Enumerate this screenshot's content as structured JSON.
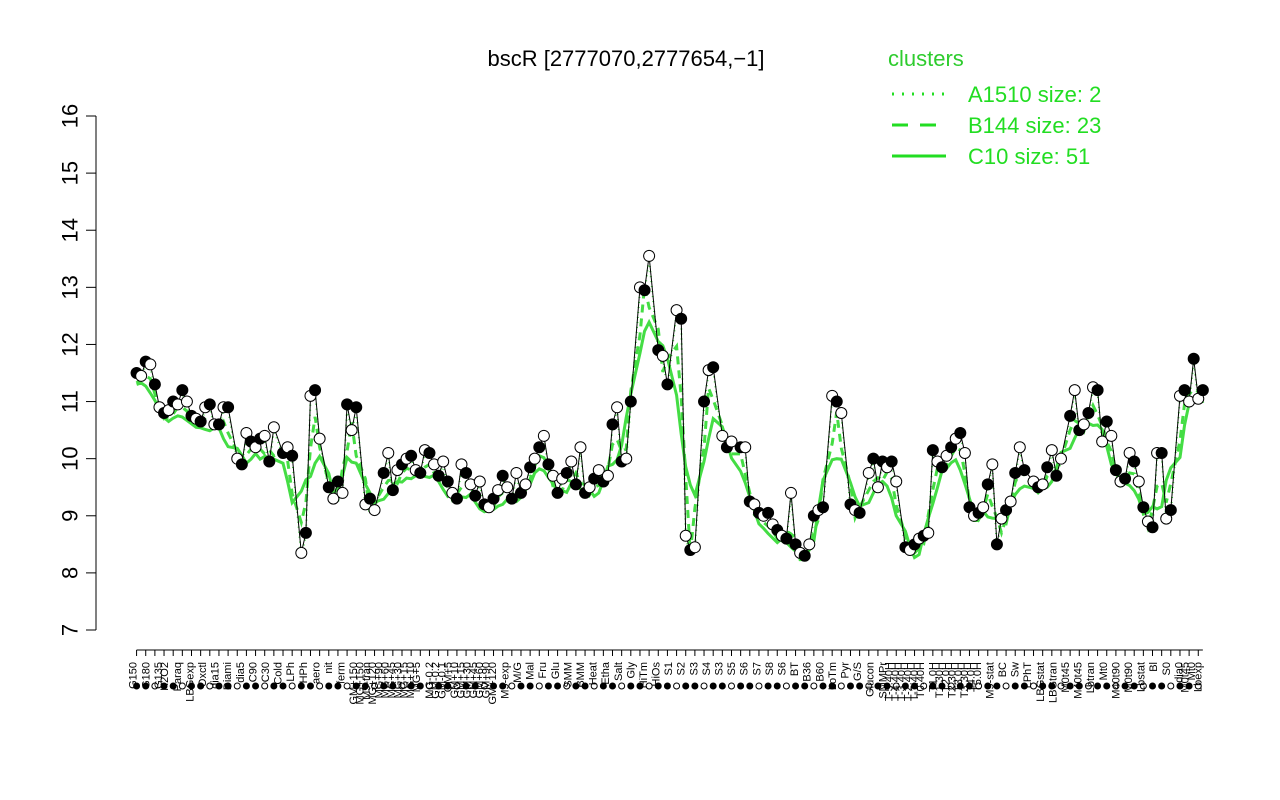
{
  "chart_data": {
    "type": "line",
    "title": "bscR [2777070,2777654,−1]",
    "xlabel": "",
    "ylabel": "",
    "ylim": [
      7,
      16
    ],
    "yticks": [
      7,
      8,
      9,
      10,
      11,
      12,
      13,
      14,
      15,
      16
    ],
    "grid": false,
    "legend": {
      "title": "clusters",
      "placement": "top-right",
      "entries": [
        {
          "label": "A1510 size: 2",
          "style": "dotted"
        },
        {
          "label": "B144 size: 23",
          "style": "dashed"
        },
        {
          "label": "C10 size: 51",
          "style": "solid"
        }
      ]
    },
    "colors": {
      "line": "#44dd44",
      "data": "#000000",
      "legend": "#22dd22"
    },
    "x_tick_labels": [
      "G150",
      "G180",
      "G135",
      "H2O2",
      "Paraq",
      "LBGexp",
      "Oxctl",
      "dia15",
      "Diami",
      "dia5",
      "C90",
      "C30",
      "Cold",
      "LPh",
      "HPh",
      "aero",
      "nit",
      "ferm",
      "GM+150",
      "MG+150",
      "M9-tran",
      "MG+120",
      "MG+90",
      "MG+60",
      "MG+45",
      "MG+30",
      "MG+15",
      "MG+10",
      "MG+5",
      "MG-0.2",
      "GM-0.2",
      "GM-0.1",
      "GM+5",
      "GM+10",
      "GM+15",
      "GM+30",
      "GM+45",
      "GM+60",
      "GM+90",
      "GM+120",
      "M9-exp",
      "M/G",
      "Mal",
      "Fru",
      "Glu",
      "SMM",
      "BMM",
      "Heat",
      "Etha",
      "Salt",
      "Gly",
      "HiTm",
      "HiOs",
      "S1",
      "S2",
      "S3",
      "S4",
      "S3",
      "S5",
      "S6",
      "S7",
      "S8",
      "S6",
      "BT",
      "B36",
      "B60",
      "LoTm",
      "Pyr",
      "G/S",
      "Glucon",
      "SMMPr",
      "T-5.40H",
      "T-4.40H",
      "T-3.40H",
      "T-2.40H",
      "T-1.40H",
      "T0.40H",
      "T1.0H",
      "T1.30H",
      "T2.0H",
      "T2.30H",
      "T3.0H",
      "T3.30H",
      "T4.0H",
      "T5.0H",
      "M9-stat",
      "BC",
      "Sw",
      "LPhT",
      "LBGstat",
      "LBGtran",
      "M0t45",
      "M40t45",
      "Lbtran",
      "Mt0",
      "M40t90",
      "M0t90",
      "Lbstat",
      "Bl",
      "S0",
      "dia0",
      "M0t45",
      "Mt0",
      "Lbexp"
    ],
    "x": [
      1,
      3,
      5,
      6,
      8,
      10,
      12,
      14,
      16,
      18,
      20,
      22,
      24,
      26,
      28,
      30,
      32,
      34,
      36,
      37,
      38,
      39,
      40,
      41,
      42,
      43,
      44,
      45,
      46,
      48,
      49,
      50,
      51,
      52,
      53,
      54,
      55,
      56,
      57,
      58,
      60,
      62,
      64,
      66,
      68,
      70,
      72,
      74,
      76,
      78,
      80,
      82,
      84,
      86,
      88,
      90,
      92,
      94,
      96,
      98,
      100,
      102,
      104,
      106,
      108,
      110,
      112,
      114,
      116,
      118,
      120,
      121,
      122,
      123,
      124,
      125,
      126,
      128,
      129,
      130,
      131,
      132,
      133,
      134,
      135,
      137,
      139,
      141,
      143,
      145,
      147,
      149,
      151,
      153,
      155,
      157,
      159,
      161,
      163,
      165,
      167,
      168,
      169,
      170
    ],
    "points": [
      [
        1,
        11.5
      ],
      [
        1.5,
        11.45
      ],
      [
        2,
        11.7
      ],
      [
        2.5,
        11.65
      ],
      [
        3,
        11.3
      ],
      [
        3.5,
        10.9
      ],
      [
        4,
        10.8
      ],
      [
        4.5,
        10.85
      ],
      [
        5,
        11.0
      ],
      [
        5.5,
        10.95
      ],
      [
        6,
        11.2
      ],
      [
        6.5,
        11.0
      ],
      [
        7,
        10.75
      ],
      [
        7.5,
        10.7
      ],
      [
        8,
        10.65
      ],
      [
        8.5,
        10.9
      ],
      [
        9,
        10.95
      ],
      [
        9.5,
        10.6
      ],
      [
        10,
        10.6
      ],
      [
        10.5,
        10.9
      ],
      [
        11,
        10.9
      ],
      [
        12,
        10.0
      ],
      [
        12.5,
        9.9
      ],
      [
        13,
        10.45
      ],
      [
        13.5,
        10.3
      ],
      [
        14,
        10.2
      ],
      [
        14.5,
        10.35
      ],
      [
        15,
        10.4
      ],
      [
        15.5,
        9.95
      ],
      [
        16,
        10.55
      ],
      [
        17,
        10.1
      ],
      [
        17.5,
        10.2
      ],
      [
        18,
        10.05
      ],
      [
        19,
        8.35
      ],
      [
        19.5,
        8.7
      ],
      [
        20,
        11.1
      ],
      [
        20.5,
        11.2
      ],
      [
        21,
        10.35
      ],
      [
        22,
        9.5
      ],
      [
        22.5,
        9.3
      ],
      [
        23,
        9.6
      ],
      [
        23.5,
        9.4
      ],
      [
        24,
        10.95
      ],
      [
        24.5,
        10.5
      ],
      [
        25,
        10.9
      ],
      [
        26,
        9.2
      ],
      [
        26.5,
        9.3
      ],
      [
        27,
        9.1
      ],
      [
        28,
        9.75
      ],
      [
        28.5,
        10.1
      ],
      [
        29,
        9.45
      ],
      [
        29.5,
        9.8
      ],
      [
        30,
        9.9
      ],
      [
        30.5,
        10.0
      ],
      [
        31,
        10.05
      ],
      [
        31.5,
        9.8
      ],
      [
        32,
        9.75
      ],
      [
        32.5,
        10.15
      ],
      [
        33,
        10.1
      ],
      [
        33.5,
        9.9
      ],
      [
        34,
        9.7
      ],
      [
        34.5,
        9.95
      ],
      [
        35,
        9.6
      ],
      [
        35.5,
        9.4
      ],
      [
        36,
        9.3
      ],
      [
        36.5,
        9.9
      ],
      [
        37,
        9.75
      ],
      [
        37.5,
        9.55
      ],
      [
        38,
        9.35
      ],
      [
        38.5,
        9.6
      ],
      [
        39,
        9.2
      ],
      [
        39.5,
        9.15
      ],
      [
        40,
        9.3
      ],
      [
        40.5,
        9.45
      ],
      [
        41,
        9.7
      ],
      [
        41.5,
        9.5
      ],
      [
        42,
        9.3
      ],
      [
        42.5,
        9.75
      ],
      [
        43,
        9.4
      ],
      [
        43.5,
        9.55
      ],
      [
        44,
        9.85
      ],
      [
        44.5,
        10.0
      ],
      [
        45,
        10.2
      ],
      [
        45.5,
        10.4
      ],
      [
        46,
        9.9
      ],
      [
        46.5,
        9.7
      ],
      [
        47,
        9.4
      ],
      [
        47.5,
        9.65
      ],
      [
        48,
        9.75
      ],
      [
        48.5,
        9.95
      ],
      [
        49,
        9.55
      ],
      [
        49.5,
        10.2
      ],
      [
        50,
        9.4
      ],
      [
        50.5,
        9.5
      ],
      [
        51,
        9.65
      ],
      [
        51.5,
        9.8
      ],
      [
        52,
        9.6
      ],
      [
        52.5,
        9.7
      ],
      [
        53,
        10.6
      ],
      [
        53.5,
        10.9
      ],
      [
        54,
        9.95
      ],
      [
        54.5,
        10.0
      ],
      [
        55,
        11.0
      ],
      [
        56,
        13.0
      ],
      [
        56.5,
        12.95
      ],
      [
        57,
        13.55
      ],
      [
        58,
        11.9
      ],
      [
        58.5,
        11.8
      ],
      [
        59,
        11.3
      ],
      [
        60,
        12.6
      ],
      [
        60.5,
        12.45
      ],
      [
        61,
        8.65
      ],
      [
        61.5,
        8.4
      ],
      [
        62,
        8.45
      ],
      [
        63,
        11.0
      ],
      [
        63.5,
        11.55
      ],
      [
        64,
        11.6
      ],
      [
        65,
        10.4
      ],
      [
        65.5,
        10.2
      ],
      [
        66,
        10.3
      ],
      [
        67,
        10.2
      ],
      [
        67.5,
        10.2
      ],
      [
        68,
        9.25
      ],
      [
        68.5,
        9.2
      ],
      [
        69,
        9.05
      ],
      [
        69.5,
        9.0
      ],
      [
        70,
        9.05
      ],
      [
        70.5,
        8.85
      ],
      [
        71,
        8.75
      ],
      [
        71.5,
        8.65
      ],
      [
        72,
        8.6
      ],
      [
        72.5,
        9.4
      ],
      [
        73,
        8.5
      ],
      [
        73.5,
        8.35
      ],
      [
        74,
        8.3
      ],
      [
        74.5,
        8.5
      ],
      [
        75,
        9.0
      ],
      [
        75.5,
        9.1
      ],
      [
        76,
        9.15
      ],
      [
        77,
        11.1
      ],
      [
        77.5,
        11.0
      ],
      [
        78,
        10.8
      ],
      [
        79,
        9.2
      ],
      [
        79.5,
        9.1
      ],
      [
        80,
        9.05
      ],
      [
        81,
        9.75
      ],
      [
        81.5,
        10.0
      ],
      [
        82,
        9.5
      ],
      [
        82.5,
        9.95
      ],
      [
        83,
        9.85
      ],
      [
        83.5,
        9.95
      ],
      [
        84,
        9.6
      ],
      [
        85,
        8.45
      ],
      [
        85.5,
        8.4
      ],
      [
        86,
        8.5
      ],
      [
        86.5,
        8.6
      ],
      [
        87,
        8.65
      ],
      [
        87.5,
        8.7
      ],
      [
        88,
        10.15
      ],
      [
        88.5,
        9.95
      ],
      [
        89,
        9.85
      ],
      [
        89.5,
        10.05
      ],
      [
        90,
        10.2
      ],
      [
        90.5,
        10.35
      ],
      [
        91,
        10.45
      ],
      [
        91.5,
        10.1
      ],
      [
        92,
        9.15
      ],
      [
        92.5,
        9.0
      ],
      [
        93,
        9.05
      ],
      [
        93.5,
        9.15
      ],
      [
        94,
        9.55
      ],
      [
        94.5,
        9.9
      ],
      [
        95,
        8.5
      ],
      [
        95.5,
        8.95
      ],
      [
        96,
        9.1
      ],
      [
        96.5,
        9.25
      ],
      [
        97,
        9.75
      ],
      [
        97.5,
        10.2
      ],
      [
        98,
        9.8
      ],
      [
        99,
        9.6
      ],
      [
        99.5,
        9.5
      ],
      [
        100,
        9.55
      ],
      [
        100.5,
        9.85
      ],
      [
        101,
        10.15
      ],
      [
        101.5,
        9.7
      ],
      [
        102,
        10.0
      ],
      [
        103,
        10.75
      ],
      [
        103.5,
        11.2
      ],
      [
        104,
        10.5
      ],
      [
        104.5,
        10.6
      ],
      [
        105,
        10.8
      ],
      [
        105.5,
        11.25
      ],
      [
        106,
        11.2
      ],
      [
        106.5,
        10.3
      ],
      [
        107,
        10.65
      ],
      [
        107.5,
        10.4
      ],
      [
        108,
        9.8
      ],
      [
        108.5,
        9.6
      ],
      [
        109,
        9.65
      ],
      [
        109.5,
        10.1
      ],
      [
        110,
        9.95
      ],
      [
        110.5,
        9.6
      ],
      [
        111,
        9.15
      ],
      [
        111.5,
        8.9
      ],
      [
        112,
        8.8
      ],
      [
        112.5,
        10.1
      ],
      [
        113,
        10.1
      ],
      [
        113.5,
        8.95
      ],
      [
        114,
        9.1
      ],
      [
        115,
        11.1
      ],
      [
        115.5,
        11.2
      ],
      [
        116,
        11.0
      ],
      [
        116.5,
        11.75
      ],
      [
        117,
        11.05
      ],
      [
        117.5,
        11.2
      ]
    ]
  }
}
